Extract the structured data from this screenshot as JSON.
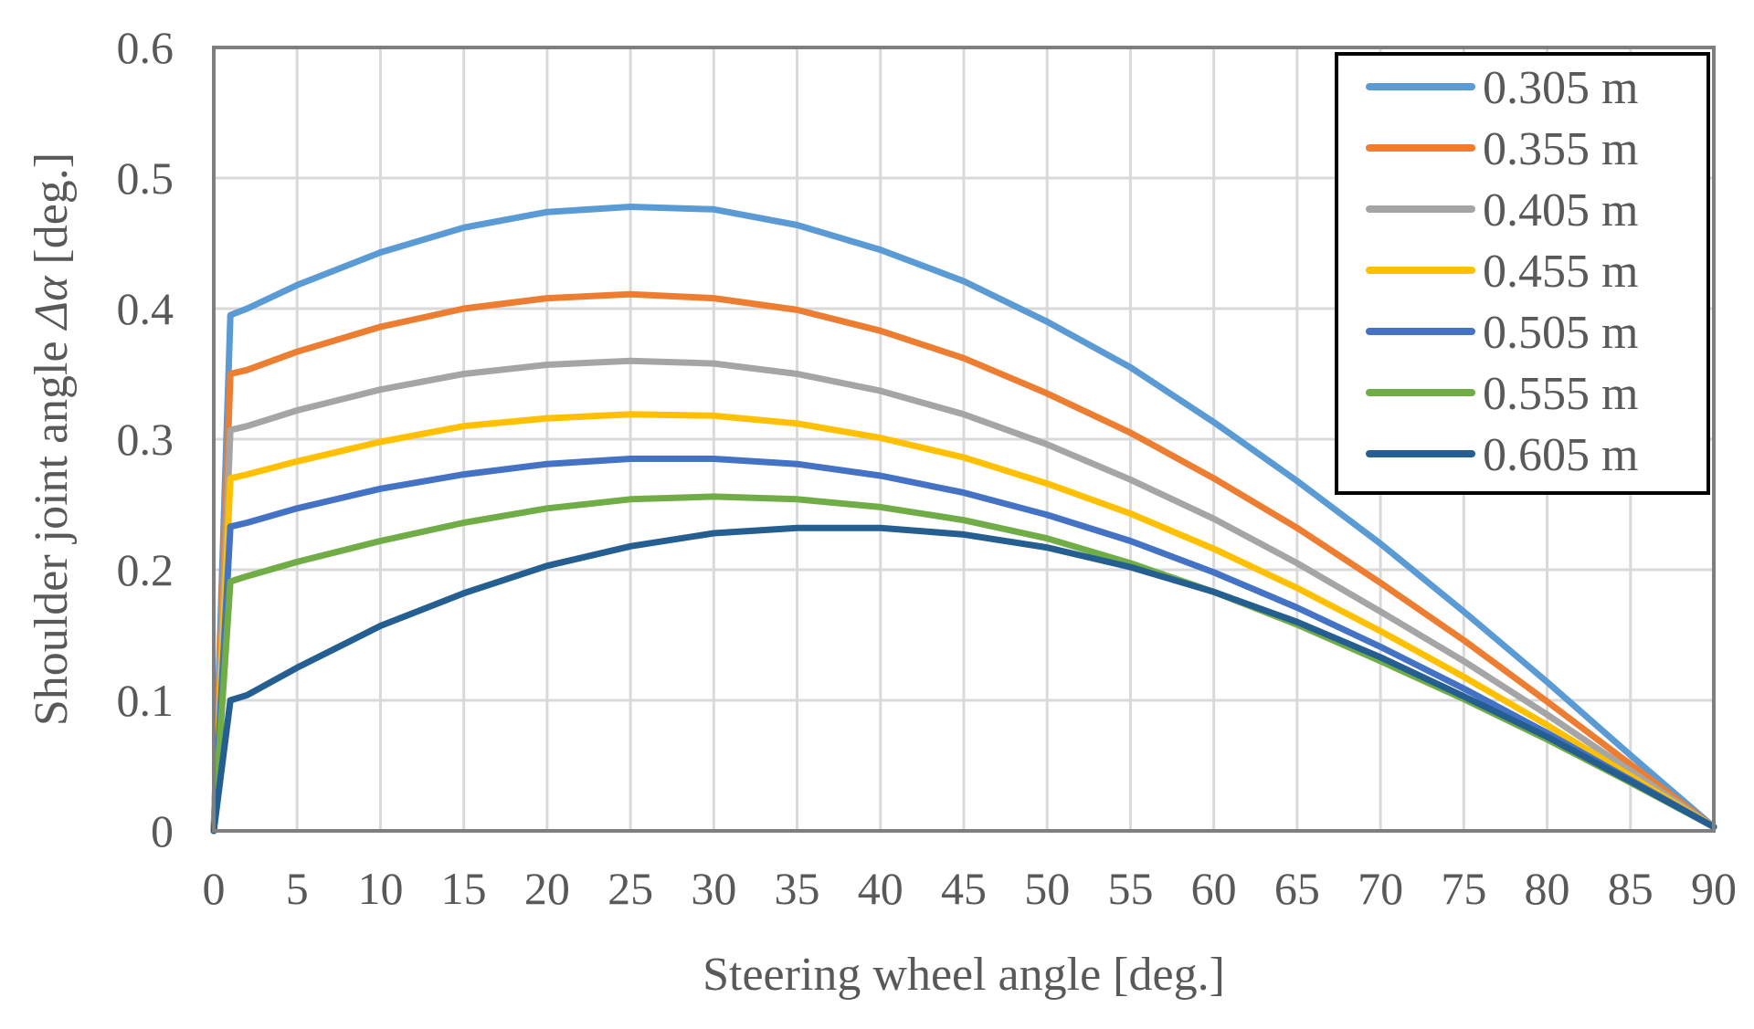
{
  "chart_data": {
    "type": "line",
    "title": "",
    "xlabel": "Steering wheel angle [deg.]",
    "ylabel_prefix": "Shoulder joint angle ",
    "ylabel_symbol": "Δα",
    "ylabel_suffix": " [deg.]",
    "xlim": [
      0,
      90
    ],
    "ylim": [
      0,
      0.6
    ],
    "xticks": [
      0,
      5,
      10,
      15,
      20,
      25,
      30,
      35,
      40,
      45,
      50,
      55,
      60,
      65,
      70,
      75,
      80,
      85,
      90
    ],
    "yticks": [
      0,
      0.1,
      0.2,
      0.3,
      0.4,
      0.5,
      0.6
    ],
    "ytick_labels": [
      "0",
      "0.1",
      "0.2",
      "0.3",
      "0.4",
      "0.5",
      "0.6"
    ],
    "grid": true,
    "legend_position": "top-right",
    "x": [
      0,
      1,
      2,
      5,
      10,
      15,
      20,
      25,
      30,
      35,
      40,
      45,
      50,
      55,
      60,
      65,
      70,
      75,
      80,
      85,
      90
    ],
    "series": [
      {
        "name": "0.305 m",
        "color": "#5b9bd5",
        "values": [
          0,
          0.395,
          0.4,
          0.418,
          0.443,
          0.462,
          0.474,
          0.478,
          0.476,
          0.464,
          0.445,
          0.421,
          0.39,
          0.355,
          0.313,
          0.268,
          0.22,
          0.168,
          0.114,
          0.058,
          0.003
        ]
      },
      {
        "name": "0.355 m",
        "color": "#ed7d31",
        "values": [
          0,
          0.35,
          0.353,
          0.367,
          0.386,
          0.4,
          0.408,
          0.411,
          0.408,
          0.399,
          0.383,
          0.362,
          0.335,
          0.305,
          0.27,
          0.232,
          0.19,
          0.146,
          0.099,
          0.051,
          0.003
        ]
      },
      {
        "name": "0.405 m",
        "color": "#a5a5a5",
        "values": [
          0,
          0.307,
          0.31,
          0.322,
          0.338,
          0.35,
          0.357,
          0.36,
          0.358,
          0.35,
          0.337,
          0.319,
          0.296,
          0.269,
          0.239,
          0.205,
          0.168,
          0.13,
          0.089,
          0.046,
          0.003
        ]
      },
      {
        "name": "0.455 m",
        "color": "#ffc000",
        "values": [
          0,
          0.27,
          0.273,
          0.283,
          0.298,
          0.31,
          0.316,
          0.319,
          0.318,
          0.312,
          0.301,
          0.286,
          0.266,
          0.243,
          0.216,
          0.186,
          0.153,
          0.118,
          0.081,
          0.042,
          0.003
        ]
      },
      {
        "name": "0.505 m",
        "color": "#4472c4",
        "values": [
          0,
          0.233,
          0.236,
          0.247,
          0.262,
          0.273,
          0.281,
          0.285,
          0.285,
          0.281,
          0.272,
          0.259,
          0.242,
          0.222,
          0.198,
          0.171,
          0.141,
          0.109,
          0.075,
          0.039,
          0.003
        ]
      },
      {
        "name": "0.555 m",
        "color": "#70ad47",
        "values": [
          0,
          0.191,
          0.195,
          0.206,
          0.222,
          0.236,
          0.247,
          0.254,
          0.256,
          0.254,
          0.248,
          0.238,
          0.224,
          0.205,
          0.183,
          0.158,
          0.13,
          0.101,
          0.07,
          0.037,
          0.003
        ]
      },
      {
        "name": "0.605 m",
        "color": "#255e91",
        "values": [
          0,
          0.1,
          0.104,
          0.125,
          0.157,
          0.182,
          0.203,
          0.218,
          0.228,
          0.232,
          0.232,
          0.227,
          0.217,
          0.202,
          0.183,
          0.16,
          0.133,
          0.103,
          0.072,
          0.038,
          0.003
        ]
      }
    ]
  }
}
